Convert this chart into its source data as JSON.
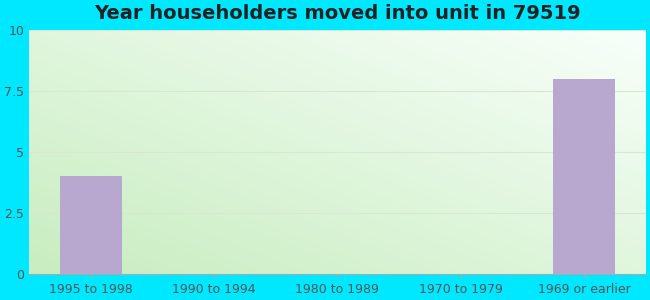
{
  "title": "Year householders moved into unit in 79519",
  "categories": [
    "1995 to 1998",
    "1990 to 1994",
    "1980 to 1989",
    "1970 to 1979",
    "1969 or earlier"
  ],
  "values": [
    4,
    0,
    0,
    0,
    8
  ],
  "bar_color": "#b8a8d0",
  "ylim": [
    0,
    10
  ],
  "yticks": [
    0,
    2.5,
    5,
    7.5,
    10
  ],
  "ytick_labels": [
    "0",
    "2.5",
    "5",
    "7.5",
    "10"
  ],
  "background_outer": "#00e8ff",
  "bg_color_green": "#c8edc0",
  "bg_color_white": "#f8fffa",
  "title_fontsize": 14,
  "tick_fontsize": 9,
  "grid_color": "#d8e8d0",
  "bar_width": 0.5,
  "figsize": [
    6.5,
    3.0
  ],
  "dpi": 100
}
